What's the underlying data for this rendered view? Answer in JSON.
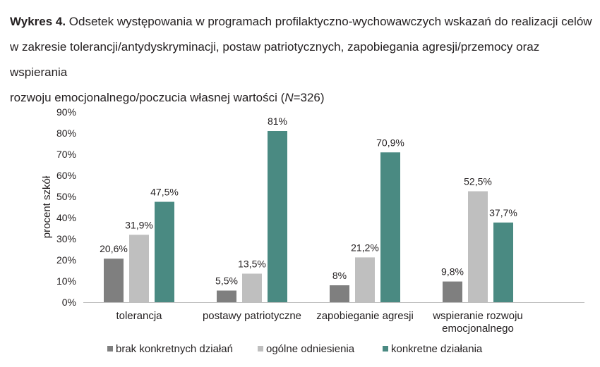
{
  "caption": {
    "label": "Wykres 4.",
    "text_line1": " Odsetek występowania w programach profilaktyczno-wychowawczych wskazań do realizacji celów",
    "text_line2": "w zakresie tolerancji/antydyskryminacji, postaw patriotycznych, zapobiegania agresji/przemocy oraz wspierania",
    "text_line3": "rozwoju emocjonalnego/poczucia własnej wartości (",
    "n_symbol": "N",
    "n_value": "=326)"
  },
  "chart_data": {
    "type": "bar",
    "ylabel": "procent szkół",
    "ylim": [
      0,
      90
    ],
    "yticks": [
      "0%",
      "10%",
      "20%",
      "30%",
      "40%",
      "50%",
      "60%",
      "70%",
      "80%",
      "90%"
    ],
    "grid": false,
    "legend_position": "bottom",
    "categories": [
      [
        "tolerancja"
      ],
      [
        "postawy patriotyczne"
      ],
      [
        "zapobieganie agresji"
      ],
      [
        "wspieranie rozwoju",
        "emocjonalnego"
      ]
    ],
    "series": [
      {
        "name": "brak konkretnych działań",
        "color": "#7f7f7f",
        "values": [
          20.6,
          5.5,
          8,
          9.8
        ],
        "labels": [
          "20,6%",
          "5,5%",
          "8%",
          "9,8%"
        ]
      },
      {
        "name": "ogólne odniesienia",
        "color": "#bfbfbf",
        "values": [
          31.9,
          13.5,
          21.2,
          52.5
        ],
        "labels": [
          "31,9%",
          "13,5%",
          "21,2%",
          "52,5%"
        ]
      },
      {
        "name": "konkretne działania",
        "color": "#4a8a82",
        "values": [
          47.5,
          81,
          70.9,
          37.7
        ],
        "labels": [
          "47,5%",
          "81%",
          "70,9%",
          "37,7%"
        ]
      }
    ]
  }
}
